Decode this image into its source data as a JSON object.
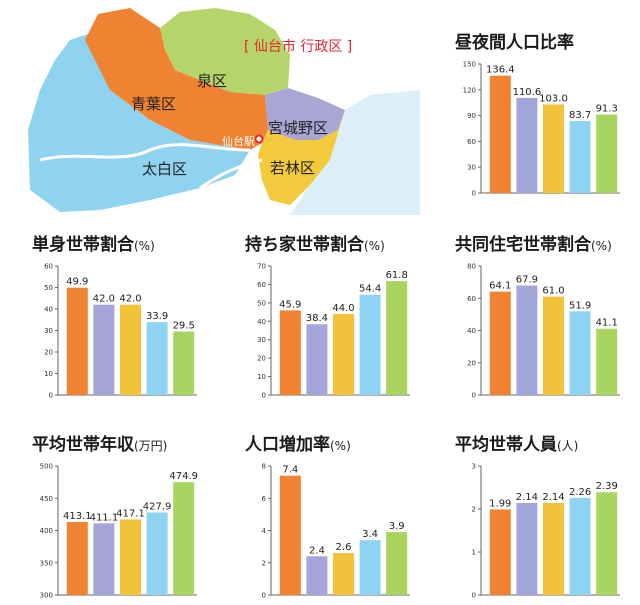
{
  "map": {
    "title": "[ 仙台市 行政区 ]",
    "wards": [
      "泉区",
      "青葉区",
      "宮城野区",
      "太白区",
      "若林区"
    ],
    "station": "仙台駅",
    "colors": {
      "aoba": "#f08332",
      "izumi": "#b5d56a",
      "miyagino": "#a9a6d4",
      "taihaku": "#8fd3f0",
      "wakabayashi": "#f2ca3c",
      "station": "#e8262e"
    }
  },
  "series_colors": [
    "#f08332",
    "#a2a6d8",
    "#f2c23b",
    "#8ed3f2",
    "#a8d460"
  ],
  "chart_data": [
    {
      "type": "bar",
      "title": "昼夜間人口比率",
      "unit": "",
      "values": [
        136.4,
        110.6,
        103.0,
        83.7,
        91.3
      ],
      "labels": [
        "136.4",
        "110.6",
        "103.0",
        "83.7",
        "91.3"
      ],
      "ylim": [
        0,
        150
      ],
      "ticks": [
        "0",
        "30",
        "60",
        "90",
        "120",
        "150"
      ]
    },
    {
      "type": "bar",
      "title": "単身世帯割合",
      "unit": "(%)",
      "values": [
        49.9,
        42.0,
        42.0,
        33.9,
        29.5
      ],
      "labels": [
        "49.9",
        "42.0",
        "42.0",
        "33.9",
        "29.5"
      ],
      "ylim": [
        0,
        60
      ],
      "ticks": [
        "0",
        "10",
        "20",
        "30",
        "40",
        "50",
        "60"
      ]
    },
    {
      "type": "bar",
      "title": "持ち家世帯割合",
      "unit": "(%)",
      "values": [
        45.9,
        38.4,
        44.0,
        54.4,
        61.8
      ],
      "labels": [
        "45.9",
        "38.4",
        "44.0",
        "54.4",
        "61.8"
      ],
      "ylim": [
        0,
        70
      ],
      "ticks": [
        "0",
        "10",
        "20",
        "30",
        "40",
        "50",
        "60",
        "70"
      ]
    },
    {
      "type": "bar",
      "title": "共同住宅世帯割合",
      "unit": "(%)",
      "values": [
        64.1,
        67.9,
        61.0,
        51.9,
        41.1
      ],
      "labels": [
        "64.1",
        "67.9",
        "61.0",
        "51.9",
        "41.1"
      ],
      "ylim": [
        0,
        80
      ],
      "ticks": [
        "0",
        "20",
        "40",
        "60",
        "80"
      ]
    },
    {
      "type": "bar",
      "title": "平均世帯年収",
      "unit": "(万円)",
      "values": [
        413.1,
        411.1,
        417.1,
        427.9,
        474.9
      ],
      "labels": [
        "413.1",
        "411.1",
        "417.1",
        "427.9",
        "474.9"
      ],
      "ylim": [
        300,
        500
      ],
      "ticks": [
        "300",
        "350",
        "400",
        "450",
        "500"
      ]
    },
    {
      "type": "bar",
      "title": "人口増加率",
      "unit": "(%)",
      "values": [
        7.4,
        2.4,
        2.6,
        3.4,
        3.9
      ],
      "labels": [
        "7.4",
        "2.4",
        "2.6",
        "3.4",
        "3.9"
      ],
      "ylim": [
        0,
        8
      ],
      "ticks": [
        "0",
        "2",
        "4",
        "6",
        "8"
      ]
    },
    {
      "type": "bar",
      "title": "平均世帯人員",
      "unit": "(人)",
      "values": [
        1.99,
        2.14,
        2.14,
        2.26,
        2.39
      ],
      "labels": [
        "1.99",
        "2.14",
        "2.14",
        "2.26",
        "2.39"
      ],
      "ylim": [
        0,
        3
      ],
      "ticks": [
        "0",
        "1",
        "2",
        "3"
      ]
    }
  ]
}
